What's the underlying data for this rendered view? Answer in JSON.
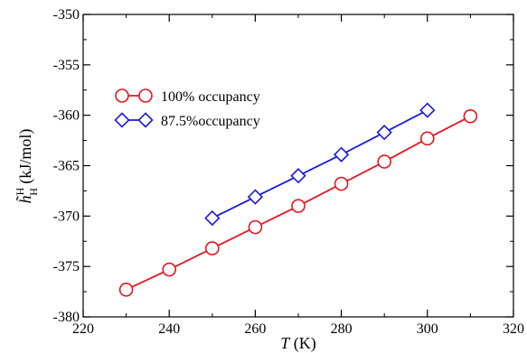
{
  "chart_data": {
    "type": "line",
    "xlabel": {
      "italic": "T",
      "rest": " (K)"
    },
    "ylabel": {
      "base": "h̃",
      "sup": "H",
      "sub": "H",
      "rest": " (kJ/mol)"
    },
    "xlim": [
      220,
      320
    ],
    "ylim": [
      -380,
      -350
    ],
    "xticks": [
      220,
      240,
      260,
      280,
      300,
      320
    ],
    "yticks": [
      -380,
      -375,
      -370,
      -365,
      -360,
      -355,
      -350
    ],
    "grid": false,
    "legend_position": "top-left",
    "series": [
      {
        "name": "100% occupancy",
        "color": "#e8141e",
        "marker": "circle",
        "x": [
          230,
          240,
          250,
          260,
          270,
          280,
          290,
          300,
          310
        ],
        "y": [
          -377.3,
          -375.3,
          -373.2,
          -371.1,
          -369.0,
          -366.8,
          -364.6,
          -362.3,
          -360.1
        ]
      },
      {
        "name": "87.5%occupancy",
        "color": "#1a1adb",
        "marker": "diamond",
        "x": [
          250,
          260,
          270,
          280,
          290,
          300
        ],
        "y": [
          -370.2,
          -368.1,
          -366.0,
          -363.9,
          -361.7,
          -359.5
        ]
      }
    ]
  }
}
